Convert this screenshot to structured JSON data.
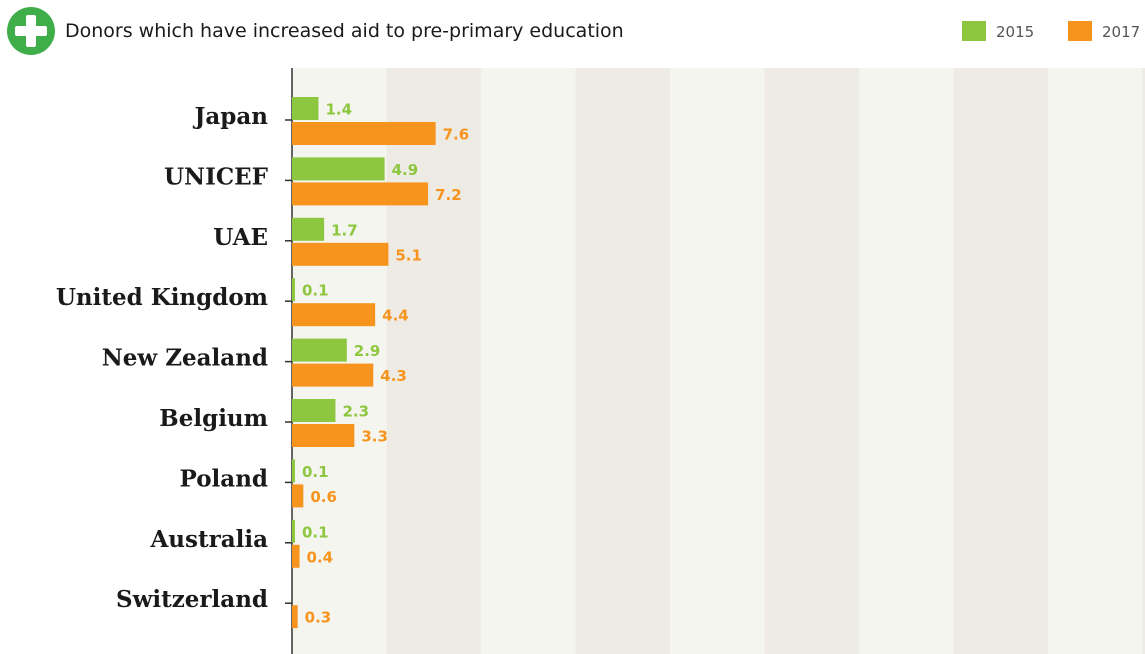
{
  "chart_data": {
    "type": "bar",
    "orientation": "horizontal",
    "title": "Donors which have increased aid to pre-primary education",
    "title_icon": "plus-circle-icon",
    "categories": [
      "Japan",
      "UNICEF",
      "UAE",
      "United Kingdom",
      "New Zealand",
      "Belgium",
      "Poland",
      "Australia",
      "Switzerland"
    ],
    "series": [
      {
        "name": "2015",
        "color": "#8dc63f",
        "values": [
          1.4,
          4.9,
          1.7,
          0.1,
          2.9,
          2.3,
          0.1,
          0.1,
          0
        ],
        "labels": [
          "1.4",
          "4.9",
          "1.7",
          "0.1",
          "2.9",
          "2.3",
          "0.1",
          "0.1",
          ""
        ]
      },
      {
        "name": "2017",
        "color": "#f7941d",
        "values": [
          7.6,
          7.2,
          5.1,
          4.4,
          4.3,
          3.3,
          0.6,
          0.4,
          0.3
        ],
        "labels": [
          "7.6",
          "7.2",
          "5.1",
          "4.4",
          "4.3",
          "3.3",
          "0.6",
          "0.4",
          "0.3"
        ]
      }
    ],
    "xlim": [
      0,
      45
    ],
    "legend_position": "top-right",
    "grid": "alternating vertical bands",
    "colors": {
      "band_light": "#f5f5f0",
      "band_dark": "#eeebe4",
      "axis": "#333333",
      "icon": "#3fae49"
    }
  }
}
